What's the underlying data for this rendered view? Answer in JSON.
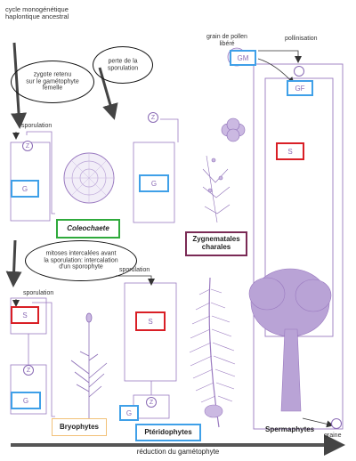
{
  "top_caption": [
    "cycle monogénétique",
    "haplontique ancestral"
  ],
  "bubbles": {
    "zygote": [
      "zygote retenu",
      "sur le gamétophyte",
      "femelle"
    ],
    "spore_loss": [
      "perte de la",
      "sporulation"
    ],
    "mitoses": [
      "mitoses intercalées avant",
      "la sporulation: intercalation",
      "d'un sporophyte"
    ]
  },
  "labels": {
    "sporulation": "sporulation",
    "pollen": [
      "grain de pollen",
      "libéré"
    ],
    "pollination": "pollinisation",
    "seed": "graine",
    "bottom_axis": "réduction du gamétophyte"
  },
  "marks": {
    "G": "G",
    "S": "S",
    "Z": "Z",
    "GM": "GM",
    "GF": "GF"
  },
  "groups": {
    "coleochaete": "Coleochaete",
    "zygnematales": [
      "Zygnematales",
      "charales"
    ],
    "bryophytes": "Bryophytes",
    "pteridophytes": "Ptéridophytes",
    "spermaphytes": "Spermaphytes"
  },
  "colors": {
    "gametophyte_border": "#3fa0e8",
    "sporophyte_border": "#d91f26",
    "cycle_line": "#8a6bb5",
    "coleochaete_border": "#2faa3c",
    "zygnematales_border": "#7a2a55",
    "bryophytes_border": "#f2c178",
    "pteridophytes_border": "#3fa0e8"
  }
}
